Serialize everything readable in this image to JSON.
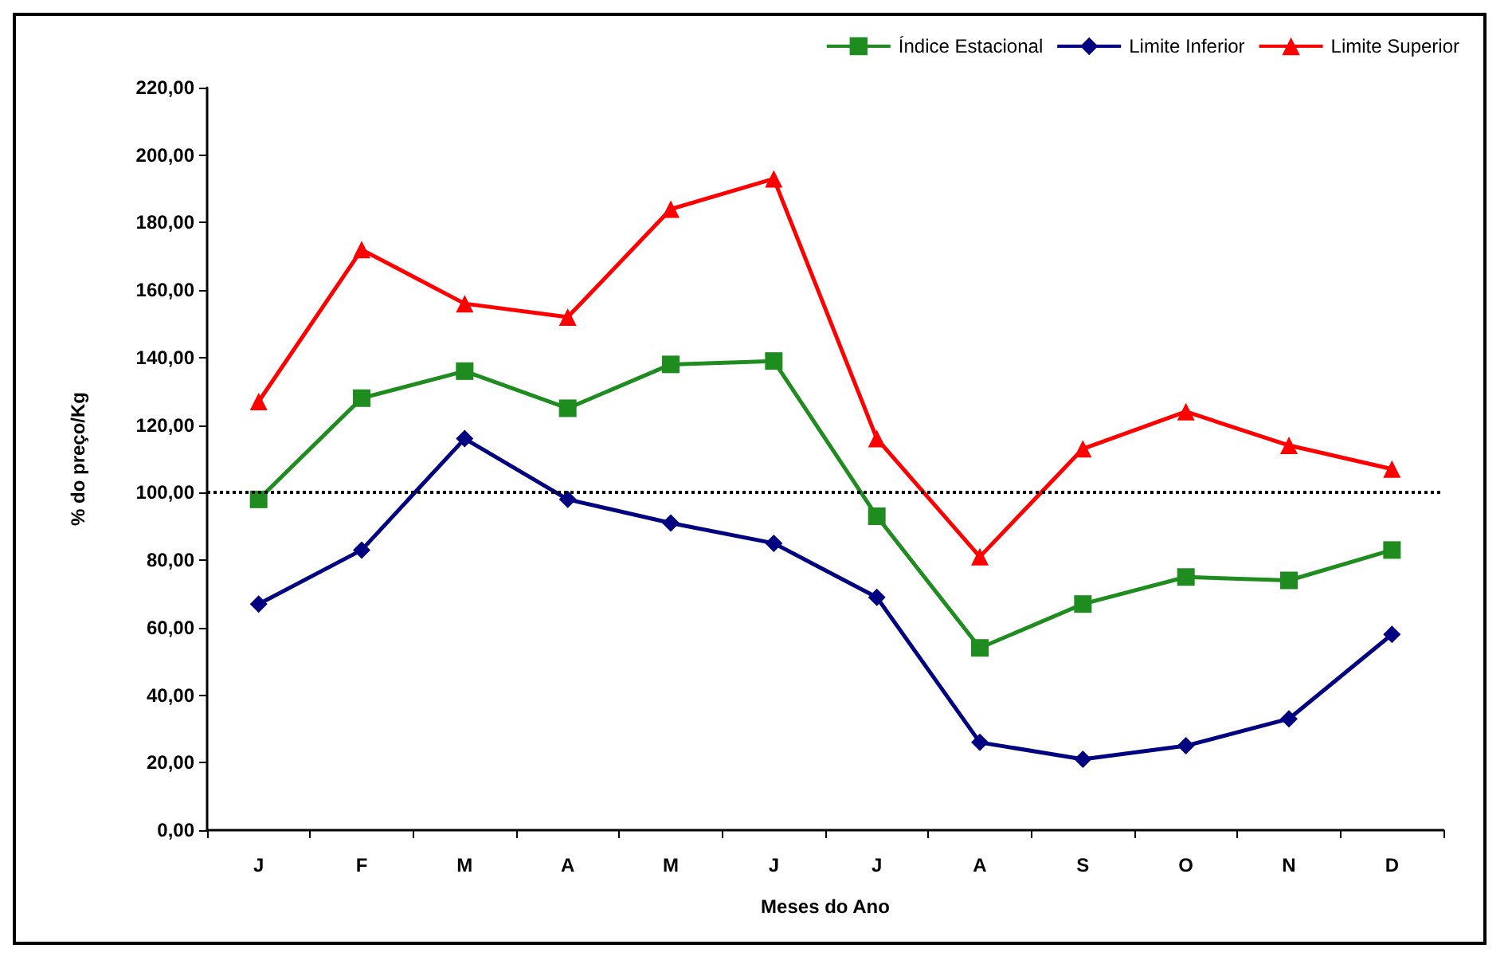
{
  "chart_data": {
    "type": "line",
    "xlabel": "Meses do Ano",
    "ylabel": "% do preço/Kg",
    "categories": [
      "J",
      "F",
      "M",
      "A",
      "M",
      "J",
      "J",
      "A",
      "S",
      "O",
      "N",
      "D"
    ],
    "series": [
      {
        "name": "Índice Estacional",
        "color": "#1e8c1e",
        "marker": "square",
        "values": [
          98,
          128,
          136,
          125,
          138,
          139,
          93,
          54,
          67,
          75,
          74,
          83
        ]
      },
      {
        "name": "Limite Inferior",
        "color": "#000080",
        "marker": "diamond",
        "values": [
          67,
          83,
          116,
          98,
          91,
          85,
          69,
          26,
          21,
          25,
          33,
          58
        ]
      },
      {
        "name": "Limite Superior",
        "color": "#ff0000",
        "marker": "triangle",
        "values": [
          127,
          172,
          156,
          152,
          184,
          193,
          116,
          81,
          113,
          124,
          114,
          107
        ]
      }
    ],
    "ylim": [
      0,
      220
    ],
    "yticks": [
      {
        "value": 0,
        "label": "0,00"
      },
      {
        "value": 20,
        "label": "20,00"
      },
      {
        "value": 40,
        "label": "40,00"
      },
      {
        "value": 60,
        "label": "60,00"
      },
      {
        "value": 80,
        "label": "80,00"
      },
      {
        "value": 100,
        "label": "100,00"
      },
      {
        "value": 120,
        "label": "120,00"
      },
      {
        "value": 140,
        "label": "140,00"
      },
      {
        "value": 160,
        "label": "160,00"
      },
      {
        "value": 180,
        "label": "180,00"
      },
      {
        "value": 200,
        "label": "200,00"
      },
      {
        "value": 220,
        "label": "220,00"
      }
    ],
    "ref_lines": [
      {
        "axis": "y",
        "value": 100,
        "color": "#000000",
        "line_style": "dotted"
      }
    ],
    "legend": "top right",
    "grid": false,
    "line_style": "solid"
  }
}
